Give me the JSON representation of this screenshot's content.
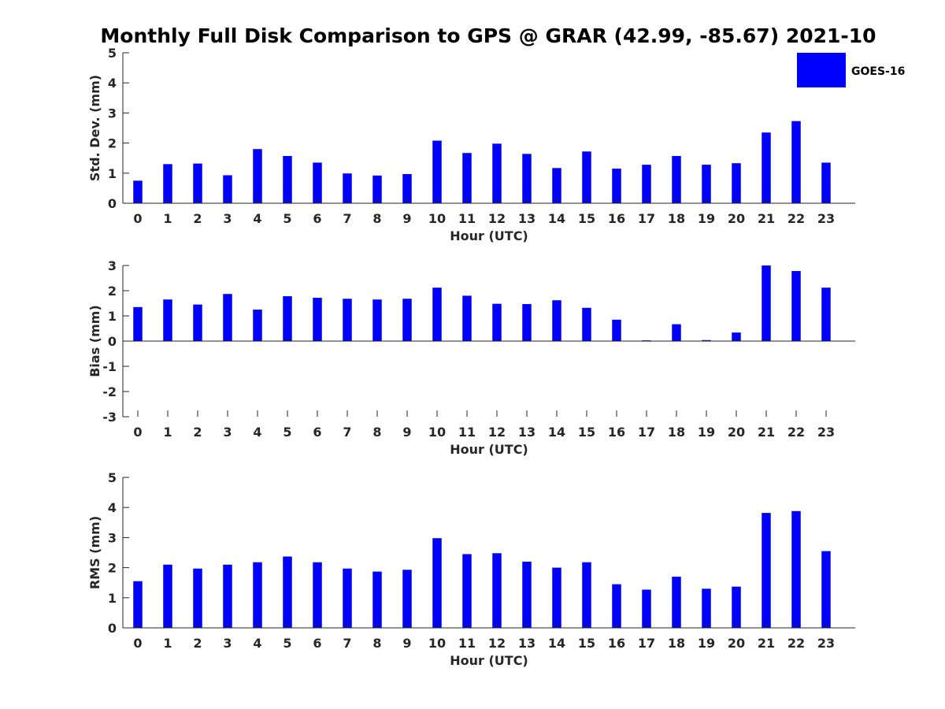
{
  "figure": {
    "title": "Monthly Full Disk Comparison to GPS @ GRAR (42.99, -85.67) 2021-10",
    "legend": {
      "label": "GOES-16",
      "color": "#0000ff"
    }
  },
  "chart_data": [
    {
      "type": "bar",
      "title": "",
      "xlabel": "Hour (UTC)",
      "ylabel": "Std. Dev. (mm)",
      "categories": [
        "0",
        "1",
        "2",
        "3",
        "4",
        "5",
        "6",
        "7",
        "8",
        "9",
        "10",
        "11",
        "12",
        "13",
        "14",
        "15",
        "16",
        "17",
        "18",
        "19",
        "20",
        "21",
        "22",
        "23"
      ],
      "series": [
        {
          "name": "GOES-16",
          "color": "#0000ff",
          "values": [
            0.75,
            1.3,
            1.32,
            0.93,
            1.8,
            1.57,
            1.35,
            0.99,
            0.92,
            0.97,
            2.08,
            1.67,
            1.98,
            1.64,
            1.17,
            1.72,
            1.15,
            1.28,
            1.57,
            1.28,
            1.33,
            2.35,
            2.73,
            1.35
          ]
        }
      ],
      "ylim": [
        0,
        5
      ],
      "yticks": [
        0,
        1,
        2,
        3,
        4,
        5
      ],
      "grid": false
    },
    {
      "type": "bar",
      "title": "",
      "xlabel": "Hour (UTC)",
      "ylabel": "Bias (mm)",
      "categories": [
        "0",
        "1",
        "2",
        "3",
        "4",
        "5",
        "6",
        "7",
        "8",
        "9",
        "10",
        "11",
        "12",
        "13",
        "14",
        "15",
        "16",
        "17",
        "18",
        "19",
        "20",
        "21",
        "22",
        "23"
      ],
      "series": [
        {
          "name": "GOES-16",
          "color": "#0000ff",
          "values": [
            1.35,
            1.65,
            1.45,
            1.87,
            1.25,
            1.78,
            1.72,
            1.68,
            1.65,
            1.68,
            2.12,
            1.8,
            1.48,
            1.47,
            1.62,
            1.32,
            0.85,
            0.03,
            0.67,
            0.04,
            0.34,
            3.0,
            2.78,
            2.12
          ]
        }
      ],
      "ylim": [
        -3,
        3
      ],
      "yticks": [
        -3,
        -2,
        -1,
        0,
        1,
        2,
        3
      ],
      "grid": false
    },
    {
      "type": "bar",
      "title": "",
      "xlabel": "Hour (UTC)",
      "ylabel": "RMS (mm)",
      "categories": [
        "0",
        "1",
        "2",
        "3",
        "4",
        "5",
        "6",
        "7",
        "8",
        "9",
        "10",
        "11",
        "12",
        "13",
        "14",
        "15",
        "16",
        "17",
        "18",
        "19",
        "20",
        "21",
        "22",
        "23"
      ],
      "series": [
        {
          "name": "GOES-16",
          "color": "#0000ff",
          "values": [
            1.55,
            2.1,
            1.97,
            2.1,
            2.18,
            2.37,
            2.18,
            1.97,
            1.87,
            1.93,
            2.98,
            2.45,
            2.48,
            2.2,
            2.0,
            2.18,
            1.45,
            1.27,
            1.7,
            1.3,
            1.37,
            3.82,
            3.88,
            2.55
          ]
        }
      ],
      "ylim": [
        0,
        5
      ],
      "yticks": [
        0,
        1,
        2,
        3,
        4,
        5
      ],
      "grid": false
    }
  ]
}
